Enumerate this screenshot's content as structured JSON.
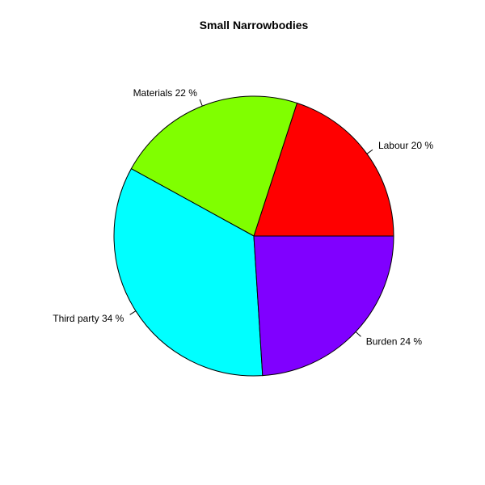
{
  "chart_data": {
    "type": "pie",
    "title": "Small Narrowbodies",
    "slices": [
      {
        "label": "Labour 20 %",
        "value": 20,
        "color": "#FF0000"
      },
      {
        "label": "Materials 22 %",
        "value": 22,
        "color": "#80FF00"
      },
      {
        "label": "Third party 34 %",
        "value": 34,
        "color": "#00FFFF"
      },
      {
        "label": "Burden 24 %",
        "value": 24,
        "color": "#8000FF"
      }
    ],
    "start_angle_deg": 0,
    "direction": "counterclockwise",
    "border_color": "#000000"
  }
}
